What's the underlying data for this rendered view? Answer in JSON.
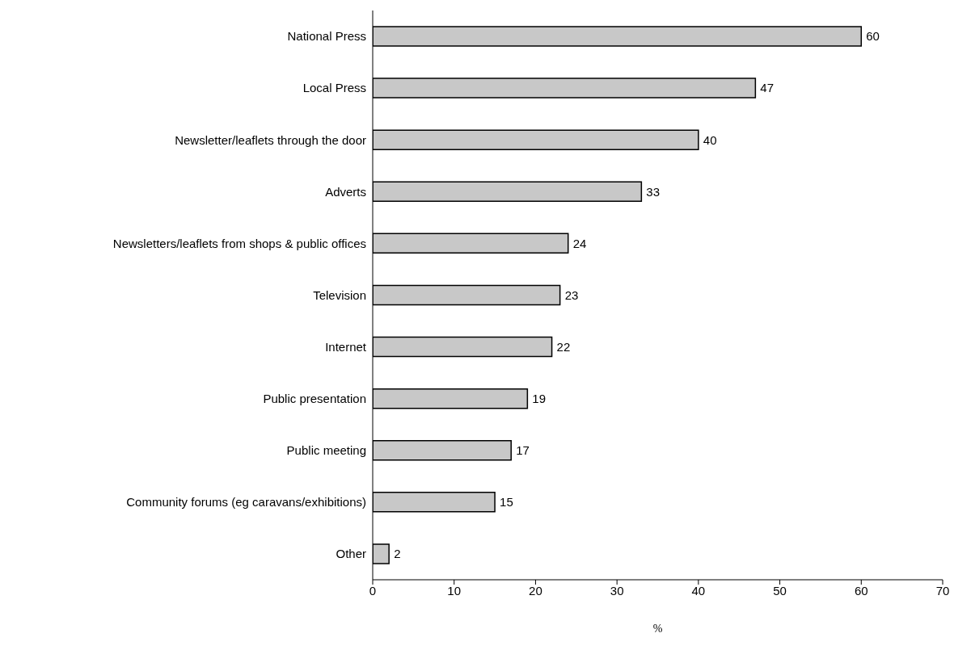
{
  "chart_data": {
    "type": "bar",
    "orientation": "horizontal",
    "xlabel": "%",
    "categories": [
      "National Press",
      "Local Press",
      "Newsletter/leaflets through the door",
      "Adverts",
      "Newsletters/leaflets from shops & public offices",
      "Television",
      "Internet",
      "Public presentation",
      "Public meeting",
      "Community forums (eg caravans/exhibitions)",
      "Other"
    ],
    "values": [
      60,
      47,
      40,
      33,
      24,
      23,
      22,
      19,
      17,
      15,
      2
    ],
    "color": "#c8c8c8",
    "xlim": [
      0,
      70
    ],
    "xticks": [
      0,
      10,
      20,
      30,
      40,
      50,
      60,
      70
    ],
    "data_labels": true,
    "grid": false,
    "legend": false
  }
}
